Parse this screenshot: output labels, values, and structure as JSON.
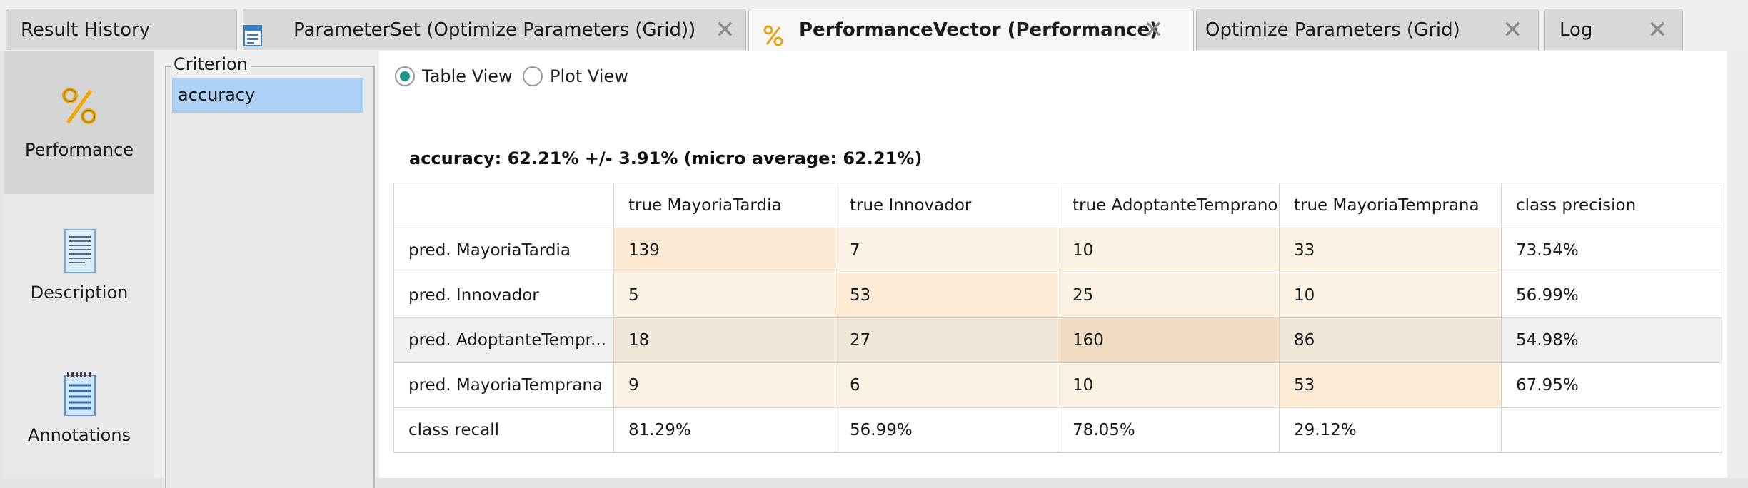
{
  "tabs": [
    {
      "label": "Result History",
      "icon": null,
      "active": false,
      "closable": false
    },
    {
      "label": "ParameterSet (Optimize Parameters (Grid))",
      "icon": "parameter-set-icon",
      "active": false,
      "closable": true
    },
    {
      "label": "PerformanceVector (Performance)",
      "icon": "percent-icon",
      "active": true,
      "closable": true
    },
    {
      "label": "Optimize Parameters (Grid)",
      "icon": null,
      "active": false,
      "closable": true
    },
    {
      "label": "Log",
      "icon": null,
      "active": false,
      "closable": true
    }
  ],
  "tab_close_glyph": "✕",
  "left_nav": [
    {
      "label": "Performance",
      "icon": "percent-icon",
      "active": true
    },
    {
      "label": "Description",
      "icon": "document-icon",
      "active": false
    },
    {
      "label": "Annotations",
      "icon": "notepad-icon",
      "active": false
    }
  ],
  "criterion": {
    "title": "Criterion",
    "selected": "accuracy"
  },
  "view_options": {
    "table_label": "Table View",
    "plot_label": "Plot View",
    "selected": "Table View"
  },
  "summary": "accuracy: 62.21% +/- 3.91% (micro average: 62.21%)",
  "confusion_matrix": {
    "header": [
      "",
      "true MayoriaTardia",
      "true Innovador",
      "true AdoptanteTemprano",
      "true MayoriaTemprana",
      "class precision"
    ],
    "rows": [
      {
        "label": "pred. MayoriaTardia",
        "values": [
          "139",
          "7",
          "10",
          "33"
        ],
        "precision": "73.54%"
      },
      {
        "label": "pred. Innovador",
        "values": [
          "5",
          "53",
          "25",
          "10"
        ],
        "precision": "56.99%"
      },
      {
        "label": "pred. AdoptanteTempr...",
        "values": [
          "18",
          "27",
          "160",
          "86"
        ],
        "precision": "54.98%"
      },
      {
        "label": "pred. MayoriaTemprana",
        "values": [
          "9",
          "6",
          "10",
          "53"
        ],
        "precision": "67.95%"
      }
    ],
    "recall": {
      "label": "class recall",
      "values": [
        "81.29%",
        "56.99%",
        "78.05%",
        "29.12%"
      ],
      "precision": ""
    }
  },
  "colors": {
    "accent_radio": "#1a9a86",
    "selection": "#aed0f7",
    "cell_diag": "#fce8d0",
    "cell_offdiag": "#fbf0e2",
    "cell_max": "#f3ddc0",
    "highlight_row": "#f0f0f0"
  }
}
